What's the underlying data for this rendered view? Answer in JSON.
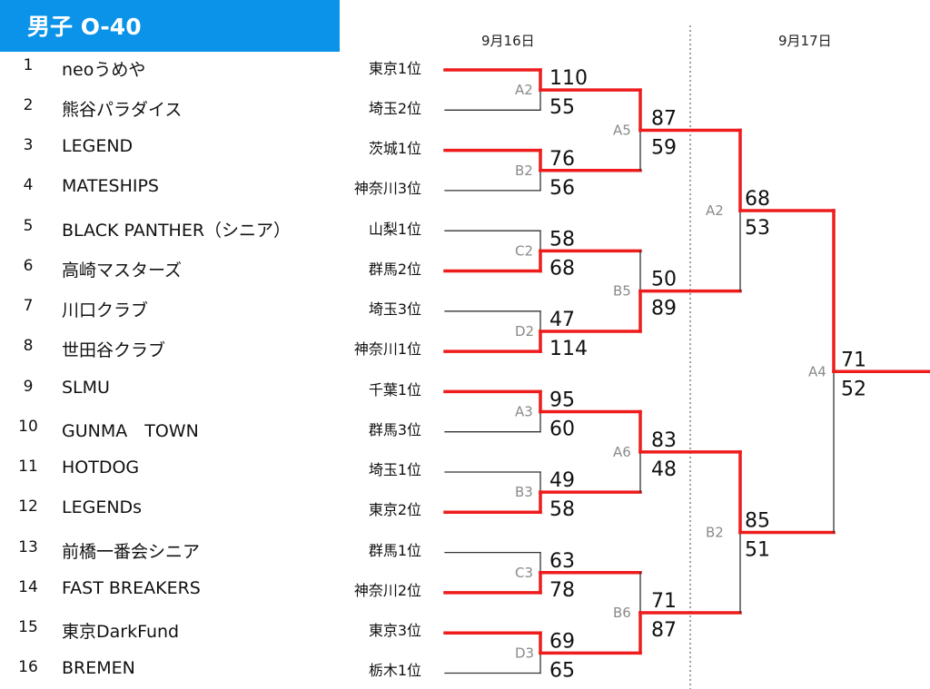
{
  "title": "男子 O-40",
  "dates": [
    "9月16日",
    "9月17日"
  ],
  "teams": [
    {
      "seed": "1",
      "name": "neoうめや",
      "pref": "東京1位"
    },
    {
      "seed": "2",
      "name": "熊谷パラダイス",
      "pref": "埼玉2位"
    },
    {
      "seed": "3",
      "name": "LEGEND",
      "pref": "茨城1位"
    },
    {
      "seed": "4",
      "name": "MATESHIPS",
      "pref": "神奈川3位"
    },
    {
      "seed": "5",
      "name": "BLACK PANTHER（シニア）",
      "pref": "山梨1位"
    },
    {
      "seed": "6",
      "name": "高崎マスターズ",
      "pref": "群馬2位"
    },
    {
      "seed": "7",
      "name": "川口クラブ",
      "pref": "埼玉3位"
    },
    {
      "seed": "8",
      "name": "世田谷クラブ",
      "pref": "神奈川1位"
    },
    {
      "seed": "9",
      "name": "SLMU",
      "pref": "千葉1位"
    },
    {
      "seed": "10",
      "name": "GUNMA　TOWN",
      "pref": "群馬3位"
    },
    {
      "seed": "11",
      "name": "HOTDOG",
      "pref": "埼玉1位"
    },
    {
      "seed": "12",
      "name": "LEGENDs",
      "pref": "東京2位"
    },
    {
      "seed": "13",
      "name": "前橋一番会シニア",
      "pref": "群馬1位"
    },
    {
      "seed": "14",
      "name": "FAST BREAKERS",
      "pref": "神奈川2位"
    },
    {
      "seed": "15",
      "name": "東京DarkFund",
      "pref": "東京3位"
    },
    {
      "seed": "16",
      "name": "BREMEN",
      "pref": "栃木1位"
    }
  ],
  "round1": [
    {
      "label": "A2",
      "top": "110",
      "bottom": "55",
      "winner": "top"
    },
    {
      "label": "B2",
      "top": "76",
      "bottom": "56",
      "winner": "top"
    },
    {
      "label": "C2",
      "top": "58",
      "bottom": "68",
      "winner": "bottom"
    },
    {
      "label": "D2",
      "top": "47",
      "bottom": "114",
      "winner": "bottom"
    },
    {
      "label": "A3",
      "top": "95",
      "bottom": "60",
      "winner": "top"
    },
    {
      "label": "B3",
      "top": "49",
      "bottom": "58",
      "winner": "bottom"
    },
    {
      "label": "C3",
      "top": "63",
      "bottom": "78",
      "winner": "bottom"
    },
    {
      "label": "D3",
      "top": "69",
      "bottom": "65",
      "winner": "top"
    }
  ],
  "round2": [
    {
      "label": "A5",
      "top": "87",
      "bottom": "59",
      "winner": "top"
    },
    {
      "label": "B5",
      "top": "50",
      "bottom": "89",
      "winner": "bottom"
    },
    {
      "label": "A6",
      "top": "83",
      "bottom": "48",
      "winner": "top"
    },
    {
      "label": "B6",
      "top": "71",
      "bottom": "87",
      "winner": "bottom"
    }
  ],
  "round3": [
    {
      "label": "A2",
      "top": "68",
      "bottom": "53",
      "winner": "top"
    },
    {
      "label": "B2",
      "top": "85",
      "bottom": "51",
      "winner": "top"
    }
  ],
  "final": {
    "label": "A4",
    "top": "71",
    "bottom": "52",
    "winner": "top"
  },
  "colors": {
    "title_bg": "#0a93e8",
    "winner_line": "#ee1c1c",
    "loser_line": "#333333",
    "label": "#8a8a8a"
  }
}
